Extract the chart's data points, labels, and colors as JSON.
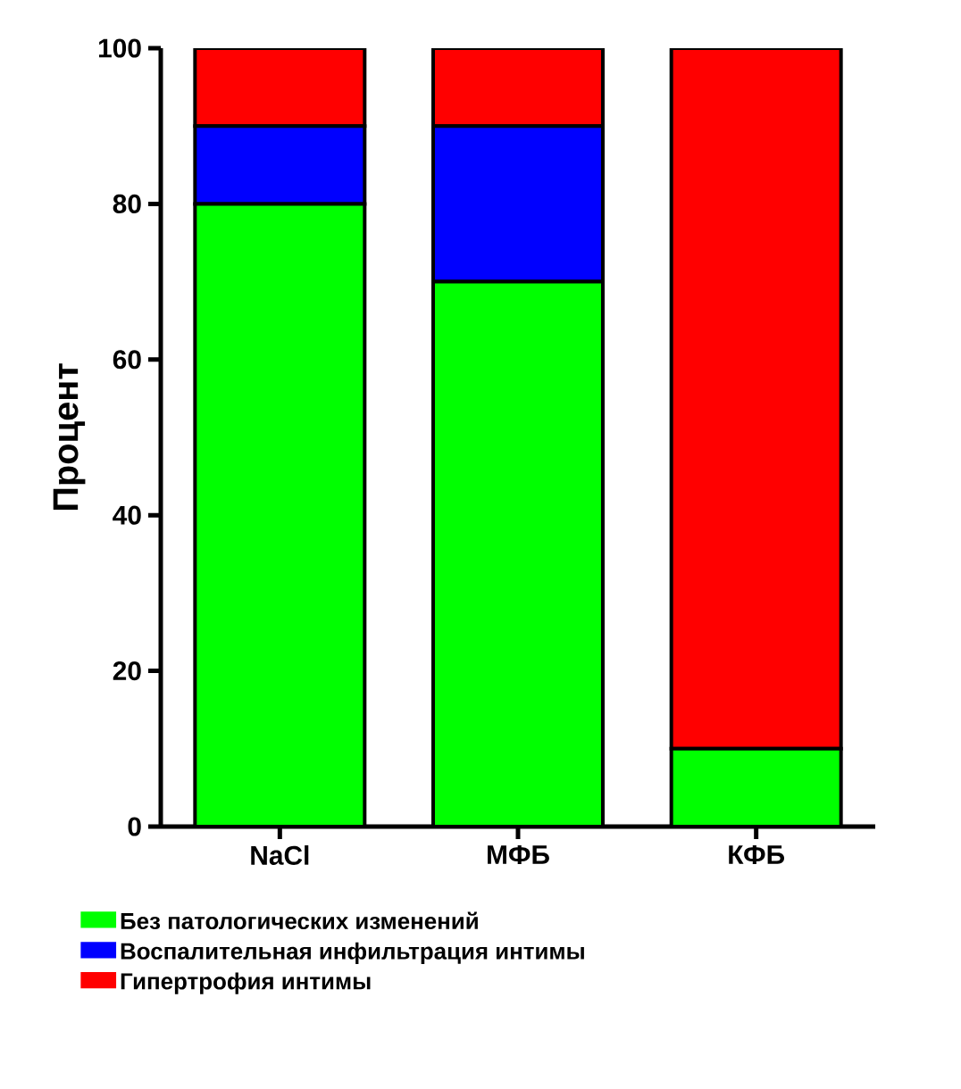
{
  "chart_data": {
    "type": "bar",
    "stacked": true,
    "ylabel": "Процент",
    "categories": [
      "NaCl",
      "МФБ",
      "КФБ"
    ],
    "series": [
      {
        "name": "Без патологических изменений",
        "color": "#00ff00",
        "values": [
          80,
          70,
          10
        ]
      },
      {
        "name": "Воспалительная инфильтрация интимы",
        "color": "#0000ff",
        "values": [
          10,
          20,
          0
        ]
      },
      {
        "name": "Гипертрофия интимы",
        "color": "#ff0000",
        "values": [
          10,
          10,
          90
        ]
      }
    ],
    "ylim": [
      0,
      100
    ],
    "yticks": [
      0,
      20,
      40,
      60,
      80,
      100
    ],
    "grid": false,
    "legend": "bottom"
  }
}
